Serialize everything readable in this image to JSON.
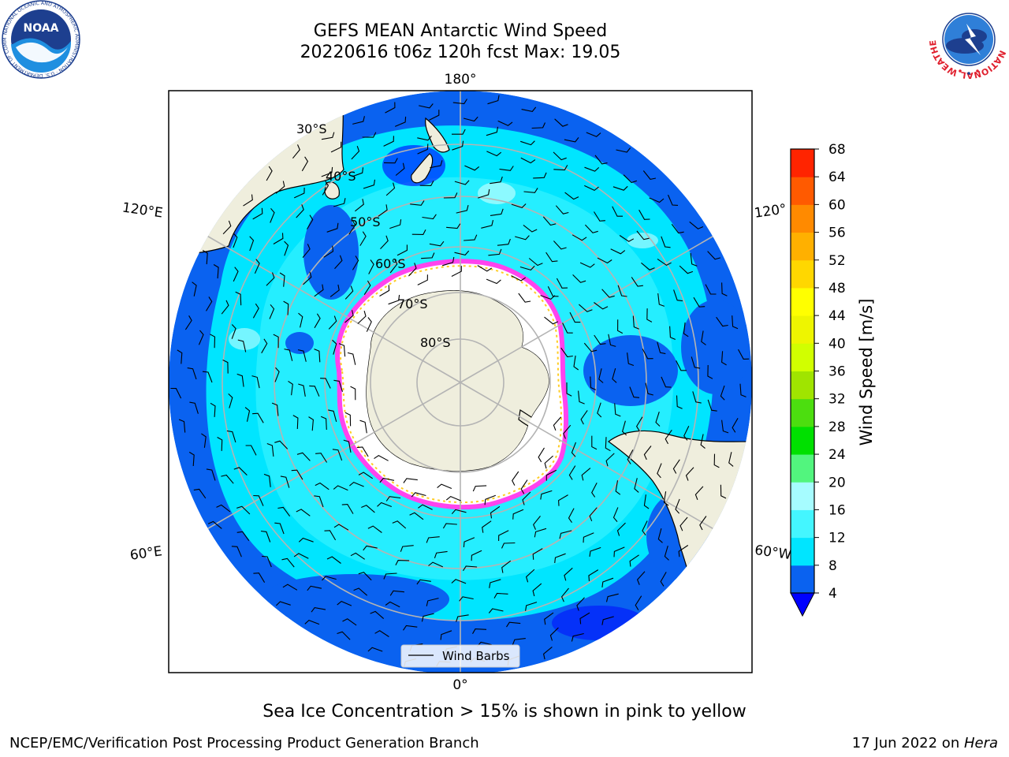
{
  "header": {
    "title": "GEFS MEAN Antarctic Wind Speed",
    "subtitle": "20220616 t06z 120h fcst   Max: 19.05"
  },
  "logos": {
    "noaa_text": "NOAA",
    "noaa_ring_text": "NATIONAL OCEANIC AND ATMOSPHERIC ADMINISTRATION · U.S. DEPARTMENT OF COMMERCE",
    "nws_ring_text": "NATIONAL WEATHER SERVICE"
  },
  "map": {
    "projection": "south-polar-stereographic",
    "lon_labels": [
      "180°",
      "120°E",
      "120°",
      "60°E",
      "60°W",
      "0°"
    ],
    "lat_labels": [
      "30°S",
      "40°S",
      "50°S",
      "60°S",
      "70°S",
      "80°S"
    ],
    "legend_label": "Wind Barbs",
    "colors": {
      "land": "#efeedd",
      "ice_free": "#ffffff",
      "sea_ice_edge": [
        "#ff44ee",
        "#ffcc22"
      ],
      "graticule": "#b4b4b4"
    }
  },
  "colorbar": {
    "label": "Wind Speed [m/s]",
    "ticks": [
      "4",
      "8",
      "12",
      "16",
      "20",
      "24",
      "28",
      "32",
      "36",
      "40",
      "44",
      "48",
      "52",
      "56",
      "60",
      "64",
      "68"
    ],
    "colors": [
      "#0a62f0",
      "#00e5ff",
      "#44f6ff",
      "#a6fcff",
      "#52f57e",
      "#00e000",
      "#4cde0f",
      "#a0e400",
      "#d1ff00",
      "#eef500",
      "#ffff00",
      "#ffd700",
      "#ffb000",
      "#ff8a00",
      "#ff5a00",
      "#ff2400",
      "#ff0000"
    ],
    "extend_color": "#0000ff"
  },
  "caption": "Sea Ice Concentration > 15% is shown in pink to yellow",
  "footer": {
    "left": "NCEP/EMC/Verification Post Processing Product Generation Branch",
    "right_date": "17 Jun 2022 on ",
    "right_host": "Hera"
  }
}
